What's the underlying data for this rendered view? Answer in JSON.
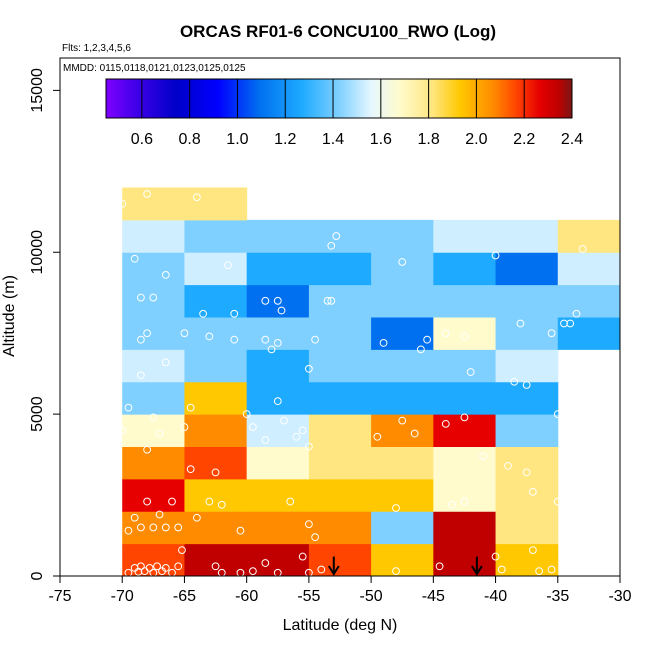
{
  "chart_data": {
    "type": "heatmap",
    "title": "ORCAS RF01-6 CONCU100_RWO (Log)",
    "flights_label": "Flts: 1,2,3,4,5,6",
    "date_label": "MMDD: 0115,0118,0121,0123,0125,0125",
    "xlabel": "Latitude (deg N)",
    "ylabel": "Altitude (m)",
    "xlim": [
      -75,
      -30
    ],
    "ylim": [
      0,
      16000
    ],
    "x_ticks": [
      -75,
      -70,
      -65,
      -60,
      -55,
      -50,
      -45,
      -40,
      -35,
      -30
    ],
    "y_ticks": [
      0,
      5000,
      10000,
      15000
    ],
    "colorbar": {
      "range": [
        0.45,
        2.4
      ],
      "ticks": [
        0.6,
        0.8,
        1.0,
        1.2,
        1.4,
        1.6,
        1.8,
        2.0,
        2.2,
        2.4
      ],
      "tick_labels": [
        "0.6",
        "0.8",
        "1.0",
        "1.2",
        "1.4",
        "1.6",
        "1.8",
        "2.0",
        "2.2",
        "2.4"
      ]
    },
    "cell_width_deg": 5,
    "cell_height_m": 1000,
    "lat_bins": [
      -70,
      -65,
      -60,
      -55,
      -50,
      -45,
      -40,
      -35
    ],
    "alt_bins": [
      0,
      1000,
      2000,
      3000,
      4000,
      5000,
      6000,
      7000,
      8000,
      9000,
      10000,
      11000
    ],
    "grid": [
      [
        2.0,
        2.25,
        2.25,
        1.95,
        1.75,
        2.25,
        1.75,
        null
      ],
      [
        1.9,
        1.9,
        1.85,
        1.85,
        1.25,
        2.25,
        1.65,
        null
      ],
      [
        2.05,
        1.75,
        1.75,
        1.75,
        1.75,
        1.45,
        1.55,
        null
      ],
      [
        1.9,
        1.95,
        1.5,
        1.55,
        1.55,
        1.45,
        1.55,
        null
      ],
      [
        1.45,
        1.9,
        1.4,
        1.65,
        1.85,
        2.1,
        1.3,
        null
      ],
      [
        1.3,
        1.75,
        1.15,
        1.15,
        1.15,
        1.15,
        1.15,
        null
      ],
      [
        1.4,
        1.25,
        1.15,
        1.25,
        1.25,
        1.25,
        1.35,
        null
      ],
      [
        1.25,
        1.25,
        1.25,
        1.2,
        1.05,
        1.5,
        1.25,
        1.15
      ],
      [
        1.25,
        1.1,
        0.95,
        1.2,
        1.25,
        1.3,
        1.25,
        1.2
      ],
      [
        1.2,
        1.35,
        1.1,
        1.1,
        1.25,
        1.1,
        0.95,
        1.35
      ],
      [
        1.35,
        1.25,
        1.25,
        1.25,
        1.3,
        1.4,
        1.4,
        1.55
      ],
      [
        1.55,
        1.55,
        null,
        null,
        null,
        null,
        null,
        null
      ]
    ],
    "sample_points": [
      [
        -69.5,
        100
      ],
      [
        -69,
        250
      ],
      [
        -68.7,
        130
      ],
      [
        -68.5,
        300
      ],
      [
        -68.2,
        150
      ],
      [
        -67.8,
        250
      ],
      [
        -67.5,
        100
      ],
      [
        -67.2,
        300
      ],
      [
        -66.8,
        150
      ],
      [
        -66.5,
        250
      ],
      [
        -66,
        100
      ],
      [
        -65.5,
        300
      ],
      [
        -65.2,
        800
      ],
      [
        -62.5,
        300
      ],
      [
        -62,
        100
      ],
      [
        -60.5,
        100
      ],
      [
        -59.5,
        150
      ],
      [
        -58.5,
        400
      ],
      [
        -57.5,
        100
      ],
      [
        -55.5,
        600
      ],
      [
        -55,
        100
      ],
      [
        -54,
        200
      ],
      [
        -48,
        150
      ],
      [
        -44.5,
        300
      ],
      [
        -40,
        600
      ],
      [
        -39.5,
        200
      ],
      [
        -37,
        800
      ],
      [
        -36.5,
        150
      ],
      [
        -35.5,
        200
      ],
      [
        -69.5,
        1400
      ],
      [
        -69,
        1800
      ],
      [
        -68.5,
        1500
      ],
      [
        -67.5,
        1500
      ],
      [
        -66.5,
        1500
      ],
      [
        -67,
        1900
      ],
      [
        -65.5,
        1500
      ],
      [
        -64,
        1800
      ],
      [
        -60.5,
        1400
      ],
      [
        -55,
        1600
      ],
      [
        -54.5,
        1200
      ],
      [
        -68,
        2300
      ],
      [
        -66,
        2300
      ],
      [
        -63,
        2300
      ],
      [
        -62,
        2200
      ],
      [
        -56.5,
        2300
      ],
      [
        -48,
        2100
      ],
      [
        -43.5,
        2200
      ],
      [
        -42.5,
        2300
      ],
      [
        -37,
        2600
      ],
      [
        -35,
        2300
      ],
      [
        -64.5,
        3300
      ],
      [
        -62.5,
        3200
      ],
      [
        -55,
        4000
      ],
      [
        -41,
        3700
      ],
      [
        -37.5,
        3200
      ],
      [
        -39,
        3400
      ],
      [
        -68,
        3900
      ],
      [
        -70,
        4500
      ],
      [
        -67.5,
        4900
      ],
      [
        -67,
        4400
      ],
      [
        -65,
        4600
      ],
      [
        -60,
        5000
      ],
      [
        -59.5,
        4600
      ],
      [
        -58.5,
        4200
      ],
      [
        -57,
        4800
      ],
      [
        -56,
        4300
      ],
      [
        -55.5,
        4500
      ],
      [
        -49.5,
        4300
      ],
      [
        -47.5,
        4800
      ],
      [
        -46.5,
        4400
      ],
      [
        -44,
        4700
      ],
      [
        -42.5,
        4900
      ],
      [
        -35,
        5000
      ],
      [
        -69.5,
        5200
      ],
      [
        -64.5,
        5200
      ],
      [
        -57.5,
        5400
      ],
      [
        -55,
        6400
      ],
      [
        -42,
        6300
      ],
      [
        -38.5,
        6000
      ],
      [
        -37.5,
        5900
      ],
      [
        -68.5,
        6200
      ],
      [
        -66.5,
        6600
      ],
      [
        -68,
        7500
      ],
      [
        -68.5,
        7300
      ],
      [
        -65,
        7500
      ],
      [
        -63,
        7400
      ],
      [
        -61,
        7300
      ],
      [
        -58.5,
        7300
      ],
      [
        -58,
        7000
      ],
      [
        -57.5,
        7200
      ],
      [
        -54.5,
        7300
      ],
      [
        -49,
        7200
      ],
      [
        -46,
        7000
      ],
      [
        -45.5,
        7300
      ],
      [
        -44,
        7500
      ],
      [
        -42.5,
        7400
      ],
      [
        -38,
        7800
      ],
      [
        -35.5,
        7500
      ],
      [
        -34.5,
        7800
      ],
      [
        -34,
        7800
      ],
      [
        -63.5,
        8100
      ],
      [
        -61,
        8100
      ],
      [
        -58.5,
        8500
      ],
      [
        -57.5,
        8500
      ],
      [
        -57.2,
        8200
      ],
      [
        -53.5,
        8500
      ],
      [
        -53.2,
        8500
      ],
      [
        -68.5,
        8600
      ],
      [
        -67.5,
        8600
      ],
      [
        -33.5,
        8100
      ],
      [
        -69,
        9800
      ],
      [
        -66.5,
        9300
      ],
      [
        -61.5,
        9600
      ],
      [
        -47.5,
        9700
      ],
      [
        -40,
        9900
      ],
      [
        -33,
        10100
      ],
      [
        -70,
        11500
      ],
      [
        -68,
        11800
      ],
      [
        -64,
        11700
      ],
      [
        -52.8,
        10500
      ],
      [
        -53.2,
        10200
      ]
    ],
    "markers": [
      {
        "lat": -53,
        "label": "arrow"
      },
      {
        "lat": -41.5,
        "label": "arrow"
      }
    ]
  },
  "colors": {
    "axis": "#000000",
    "point_stroke": "#ffffff",
    "palette": [
      "#7f00ff",
      "#3b00e8",
      "#0000c8",
      "#0000ff",
      "#0070f0",
      "#1eaaff",
      "#7fd0ff",
      "#cfeeff",
      "#fffbcc",
      "#ffe680",
      "#ffc800",
      "#ff8c00",
      "#ff4500",
      "#e60000",
      "#c00000",
      "#7a1616"
    ]
  }
}
